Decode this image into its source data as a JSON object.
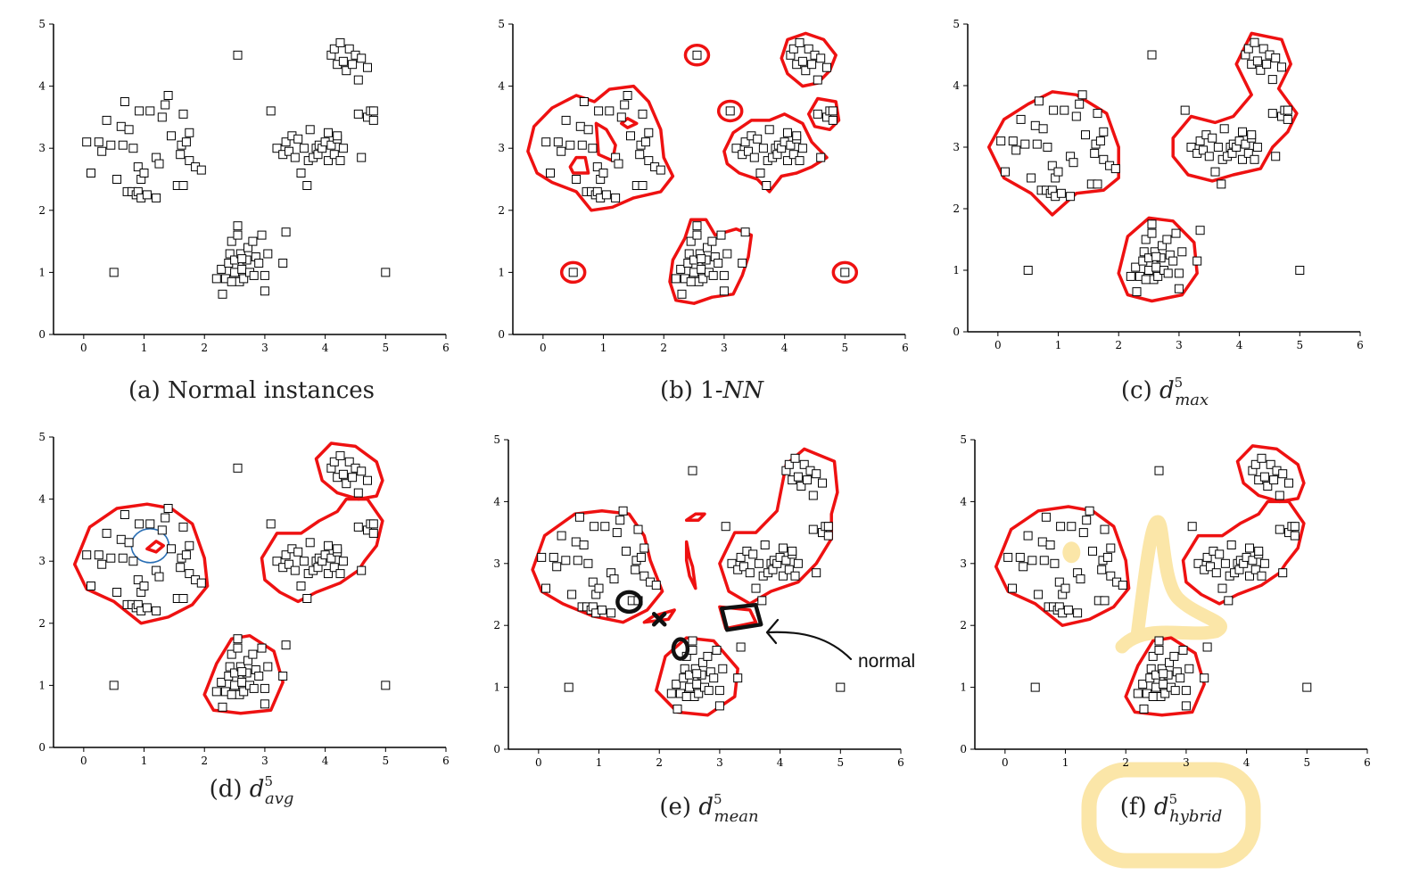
{
  "figure": {
    "panels": [
      {
        "id": "a",
        "caption_parts": [
          {
            "t": "(a) Normal instances",
            "k": "n"
          }
        ]
      },
      {
        "id": "b",
        "caption_parts": [
          {
            "t": "(b) 1-",
            "k": "n"
          },
          {
            "t": "NN",
            "k": "i"
          }
        ]
      },
      {
        "id": "c",
        "caption_parts": [
          {
            "t": "(c) ",
            "k": "n"
          },
          {
            "t": "d",
            "k": "i"
          },
          {
            "t": "5",
            "k": "sup"
          },
          {
            "t": "max",
            "k": "sub"
          }
        ]
      },
      {
        "id": "d",
        "caption_parts": [
          {
            "t": "(d) ",
            "k": "n"
          },
          {
            "t": "d",
            "k": "i"
          },
          {
            "t": "5",
            "k": "sup"
          },
          {
            "t": "avg",
            "k": "sub"
          }
        ]
      },
      {
        "id": "e",
        "caption_parts": [
          {
            "t": "(e) ",
            "k": "n"
          },
          {
            "t": "d",
            "k": "i"
          },
          {
            "t": "5",
            "k": "sup"
          },
          {
            "t": "mean",
            "k": "sub"
          }
        ]
      },
      {
        "id": "f",
        "caption_parts": [
          {
            "t": "(f) ",
            "k": "n"
          },
          {
            "t": "d",
            "k": "i"
          },
          {
            "t": "5",
            "k": "sup"
          },
          {
            "t": "hybrid",
            "k": "sub"
          }
        ]
      }
    ],
    "annotation_note": "normal",
    "colors": {
      "boundary": "#ee1111",
      "ink": "#111111",
      "highlight": "#fbe6a8",
      "blue_circle": "#2a6fb5"
    }
  },
  "chart_data": {
    "type": "scatter",
    "xlim": [
      -0.5,
      6
    ],
    "ylim": [
      0,
      5
    ],
    "x_ticks": [
      0,
      1,
      2,
      3,
      4,
      5,
      6
    ],
    "y_ticks": [
      0,
      1,
      2,
      3,
      4,
      5
    ],
    "grid": false,
    "panels": [
      "a",
      "b",
      "c",
      "d",
      "e",
      "f"
    ],
    "points": [
      [
        0.05,
        3.1
      ],
      [
        0.12,
        2.6
      ],
      [
        0.25,
        3.1
      ],
      [
        0.3,
        2.95
      ],
      [
        0.38,
        3.45
      ],
      [
        0.45,
        3.05
      ],
      [
        0.55,
        2.5
      ],
      [
        0.62,
        3.35
      ],
      [
        0.65,
        3.05
      ],
      [
        0.68,
        3.75
      ],
      [
        0.72,
        2.3
      ],
      [
        0.75,
        3.3
      ],
      [
        0.8,
        2.3
      ],
      [
        0.82,
        3.0
      ],
      [
        0.87,
        2.25
      ],
      [
        0.9,
        2.3
      ],
      [
        0.92,
        3.6
      ],
      [
        0.9,
        2.7
      ],
      [
        0.95,
        2.5
      ],
      [
        0.95,
        2.2
      ],
      [
        1.0,
        2.6
      ],
      [
        1.05,
        2.25
      ],
      [
        1.1,
        3.6
      ],
      [
        1.2,
        2.85
      ],
      [
        1.25,
        2.75
      ],
      [
        1.3,
        3.5
      ],
      [
        1.35,
        3.7
      ],
      [
        1.4,
        3.85
      ],
      [
        1.45,
        3.2
      ],
      [
        1.55,
        2.4
      ],
      [
        1.6,
        2.9
      ],
      [
        1.62,
        3.05
      ],
      [
        1.65,
        2.4
      ],
      [
        1.65,
        3.55
      ],
      [
        1.7,
        3.1
      ],
      [
        1.75,
        2.8
      ],
      [
        1.75,
        3.25
      ],
      [
        1.85,
        2.7
      ],
      [
        1.95,
        2.65
      ],
      [
        1.2,
        2.2
      ],
      [
        0.5,
        1.0
      ],
      [
        2.55,
        4.5
      ],
      [
        2.2,
        0.9
      ],
      [
        2.28,
        1.05
      ],
      [
        2.3,
        0.65
      ],
      [
        2.35,
        0.9
      ],
      [
        2.4,
        1.15
      ],
      [
        2.42,
        1.3
      ],
      [
        2.45,
        1.5
      ],
      [
        2.5,
        1.0
      ],
      [
        2.5,
        1.2
      ],
      [
        2.55,
        1.6
      ],
      [
        2.55,
        1.75
      ],
      [
        2.58,
        0.85
      ],
      [
        2.6,
        1.3
      ],
      [
        2.62,
        1.05
      ],
      [
        2.65,
        0.9
      ],
      [
        2.7,
        1.2
      ],
      [
        2.72,
        1.4
      ],
      [
        2.75,
        1.0
      ],
      [
        2.8,
        1.5
      ],
      [
        2.82,
        0.95
      ],
      [
        2.85,
        1.25
      ],
      [
        2.9,
        1.15
      ],
      [
        2.95,
        1.6
      ],
      [
        3.0,
        0.95
      ],
      [
        3.0,
        0.7
      ],
      [
        3.05,
        1.3
      ],
      [
        3.3,
        1.15
      ],
      [
        3.35,
        1.65
      ],
      [
        2.45,
        0.85
      ],
      [
        2.62,
        1.22
      ],
      [
        3.1,
        3.6
      ],
      [
        3.2,
        3.0
      ],
      [
        3.3,
        2.9
      ],
      [
        3.35,
        3.1
      ],
      [
        3.4,
        2.95
      ],
      [
        3.45,
        3.2
      ],
      [
        3.5,
        2.85
      ],
      [
        3.55,
        3.15
      ],
      [
        3.6,
        2.6
      ],
      [
        3.65,
        3.0
      ],
      [
        3.7,
        2.4
      ],
      [
        3.72,
        2.8
      ],
      [
        3.75,
        3.3
      ],
      [
        3.8,
        2.85
      ],
      [
        3.85,
        3.0
      ],
      [
        3.88,
        2.9
      ],
      [
        3.9,
        3.05
      ],
      [
        3.95,
        3.0
      ],
      [
        4.0,
        3.1
      ],
      [
        4.05,
        3.25
      ],
      [
        4.05,
        2.8
      ],
      [
        4.1,
        3.05
      ],
      [
        4.15,
        2.9
      ],
      [
        4.2,
        3.15
      ],
      [
        4.25,
        2.8
      ],
      [
        4.3,
        3.0
      ],
      [
        4.2,
        3.2
      ],
      [
        4.1,
        4.5
      ],
      [
        4.15,
        4.6
      ],
      [
        4.2,
        4.35
      ],
      [
        4.25,
        4.7
      ],
      [
        4.3,
        4.4
      ],
      [
        4.35,
        4.25
      ],
      [
        4.4,
        4.6
      ],
      [
        4.45,
        4.35
      ],
      [
        4.5,
        4.5
      ],
      [
        4.55,
        4.1
      ],
      [
        4.6,
        4.45
      ],
      [
        4.7,
        4.3
      ],
      [
        4.7,
        3.5
      ],
      [
        4.75,
        3.6
      ],
      [
        4.8,
        3.45
      ],
      [
        4.8,
        3.6
      ],
      [
        4.6,
        2.85
      ],
      [
        4.55,
        3.55
      ],
      [
        5.0,
        1.0
      ]
    ]
  }
}
